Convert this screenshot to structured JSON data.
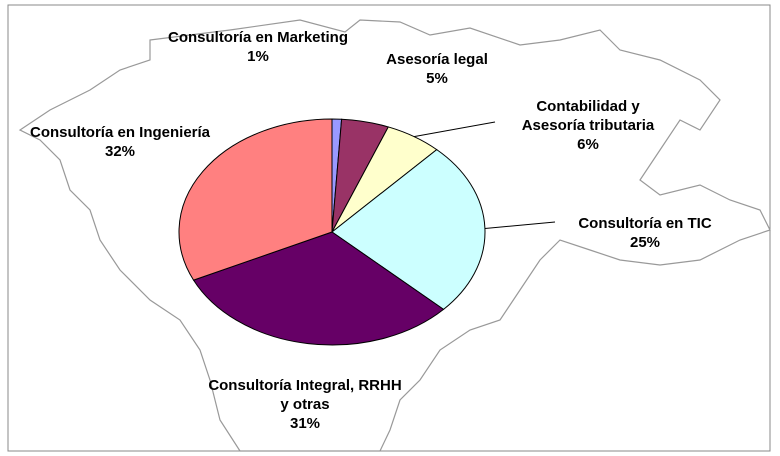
{
  "chart_data": {
    "type": "pie",
    "categories": [
      "Consultoría en Marketing",
      "Asesoría legal",
      "Contabilidad y Asesoría tributaria",
      "Consultoría en TIC",
      "Consultoría Integral, RRHH y otras",
      "Consultoría en Ingeniería"
    ],
    "values": [
      1,
      5,
      6,
      25,
      31,
      32
    ],
    "value_labels": [
      "1%",
      "5%",
      "6%",
      "25%",
      "31%",
      "32%"
    ],
    "colors": [
      "#9999ff",
      "#993366",
      "#ffffcc",
      "#ccffff",
      "#660066",
      "#ff8080"
    ]
  }
}
